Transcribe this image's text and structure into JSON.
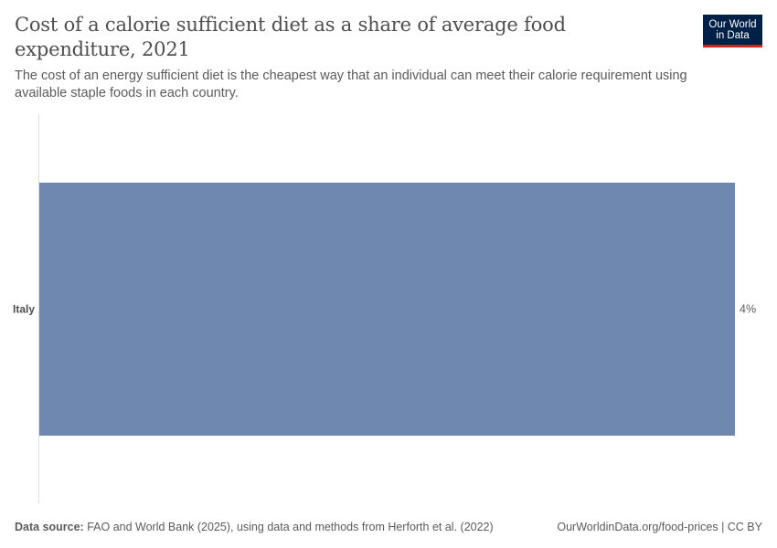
{
  "header": {
    "title": "Cost of a calorie sufficient diet as a share of average food expenditure, 2021",
    "subtitle": "The cost of an energy sufficient diet is the cheapest way that an individual can meet their calorie requirement using available staple foods in each country."
  },
  "logo": {
    "line1": "Our World",
    "line2": "in Data",
    "bg": "#002147",
    "accent": "#ce261e"
  },
  "colors": {
    "bar": "#6f88b0",
    "axis": "#dddddd"
  },
  "chart_data": {
    "type": "bar",
    "orientation": "horizontal",
    "categories": [
      "Italy"
    ],
    "values": [
      4
    ],
    "value_labels": [
      "4%"
    ],
    "unit": "%",
    "xlim": [
      0,
      4
    ],
    "grid": false
  },
  "footer": {
    "source_label": "Data source:",
    "source_text": "FAO and World Bank (2025), using data and methods from Herforth et al. (2022)",
    "url": "OurWorldinData.org/food-prices | CC BY"
  }
}
